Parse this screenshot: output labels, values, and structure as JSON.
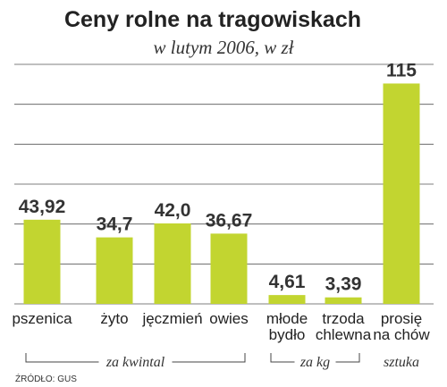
{
  "chart_data": {
    "type": "bar",
    "title": "Ceny rolne na tragowiskach",
    "subtitle": "w lutym 2006, w zł",
    "categories": [
      [
        "pszenica"
      ],
      [
        "żyto"
      ],
      [
        "jęczmień"
      ],
      [
        "owies"
      ],
      [
        "młode",
        "bydło"
      ],
      [
        "trzoda",
        "chlewna"
      ],
      [
        "prosię",
        "na chów"
      ]
    ],
    "values": [
      43.92,
      34.7,
      42.0,
      36.67,
      4.61,
      3.39,
      115
    ],
    "value_labels": [
      "43,92",
      "34,7",
      "42,0",
      "36,67",
      "4,61",
      "3,39",
      "115"
    ],
    "ylim": [
      0,
      125
    ],
    "grid": true,
    "bar_color": "#c2d530",
    "groups": [
      {
        "label": "za kwintal",
        "from": 0,
        "to": 3
      },
      {
        "label": "za kg",
        "from": 4,
        "to": 5
      },
      {
        "label": "sztuka",
        "from": 6,
        "to": 6
      }
    ],
    "source": "ŹRÓDŁO: GUS"
  }
}
